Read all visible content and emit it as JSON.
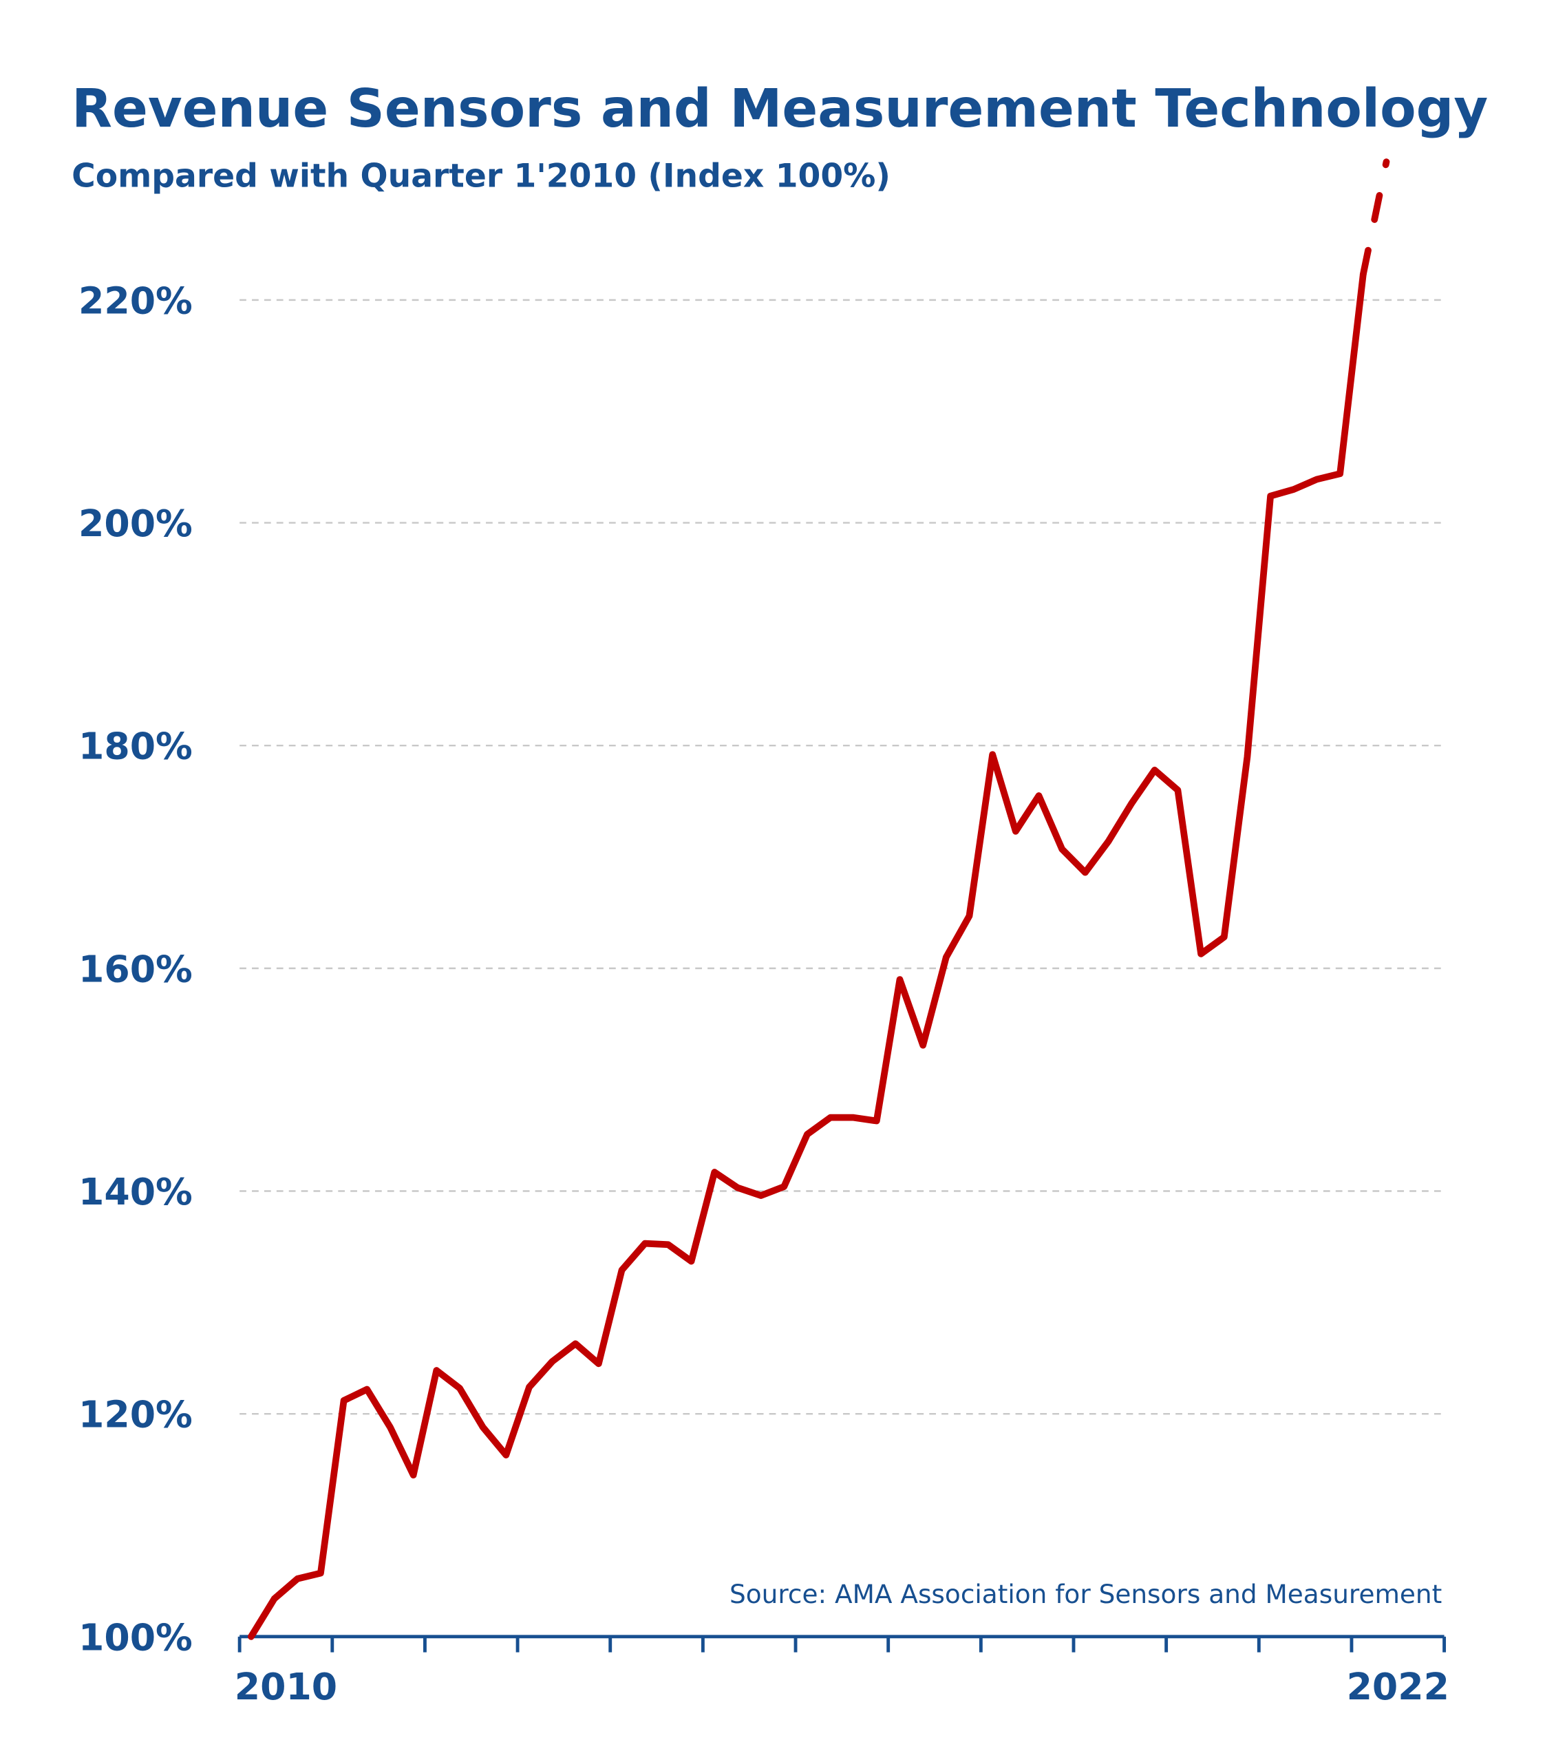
{
  "chart_data": {
    "type": "line",
    "title": "Revenue Sensors and Measurement Technology",
    "subtitle": "Compared with Quarter 1'2010 (Index 100%)",
    "source": "Source: AMA Association  for Sensors and Measurement",
    "xlabel": "",
    "ylabel": "",
    "ylim": [
      100,
      230
    ],
    "yticks": [
      "100%",
      "120%",
      "140%",
      "160%",
      "180%",
      "200%",
      "220%"
    ],
    "ytick_values": [
      100,
      120,
      140,
      160,
      180,
      200,
      220
    ],
    "xtick_labels": [
      "2010",
      "2022"
    ],
    "xrange_years": [
      2010,
      2022
    ],
    "grid": "horizontal dashed",
    "colors": {
      "line": "#c00000",
      "text": "#174f90",
      "grid": "#c8c8c8"
    },
    "series": [
      {
        "style": "solid",
        "x": [
          "2010 Q1",
          "2010 Q2",
          "2010 Q3",
          "2010 Q4",
          "2011 Q1",
          "2011 Q2",
          "2011 Q3",
          "2011 Q4",
          "2012 Q1",
          "2012 Q2",
          "2012 Q3",
          "2012 Q4",
          "2013 Q1",
          "2013 Q2",
          "2013 Q3",
          "2013 Q4",
          "2014 Q1",
          "2014 Q2",
          "2014 Q3",
          "2014 Q4",
          "2015 Q1",
          "2015 Q2",
          "2015 Q3",
          "2015 Q4",
          "2016 Q1",
          "2016 Q2",
          "2016 Q3",
          "2016 Q4",
          "2017 Q1",
          "2017 Q2",
          "2017 Q3",
          "2017 Q4",
          "2018 Q1",
          "2018 Q2",
          "2018 Q3",
          "2018 Q4",
          "2019 Q1",
          "2019 Q2",
          "2019 Q3",
          "2019 Q4",
          "2020 Q1",
          "2020 Q2",
          "2020 Q3",
          "2020 Q4",
          "2021 Q1",
          "2021 Q2",
          "2021 Q3",
          "2021 Q4",
          "2022 Q1"
        ],
        "values": [
          100,
          103.4,
          105.2,
          105.7,
          121.2,
          122.2,
          118.8,
          114.5,
          123.9,
          122.3,
          118.8,
          116.3,
          122.4,
          124.7,
          126.3,
          124.5,
          132.9,
          135.3,
          135.2,
          133.7,
          141.7,
          140.3,
          139.6,
          140.4,
          145.1,
          146.6,
          146.6,
          146.3,
          159.0,
          153.1,
          161.0,
          164.7,
          179.2,
          172.3,
          175.5,
          170.7,
          168.6,
          171.4,
          174.8,
          177.8,
          176.0,
          161.3,
          162.8,
          179.0,
          202.4,
          203.0,
          203.9,
          204.4,
          222.3
        ]
      },
      {
        "style": "dashed",
        "x": [
          "2022 Q1",
          "2022 Q2"
        ],
        "values": [
          222.3,
          232.4
        ]
      }
    ]
  }
}
